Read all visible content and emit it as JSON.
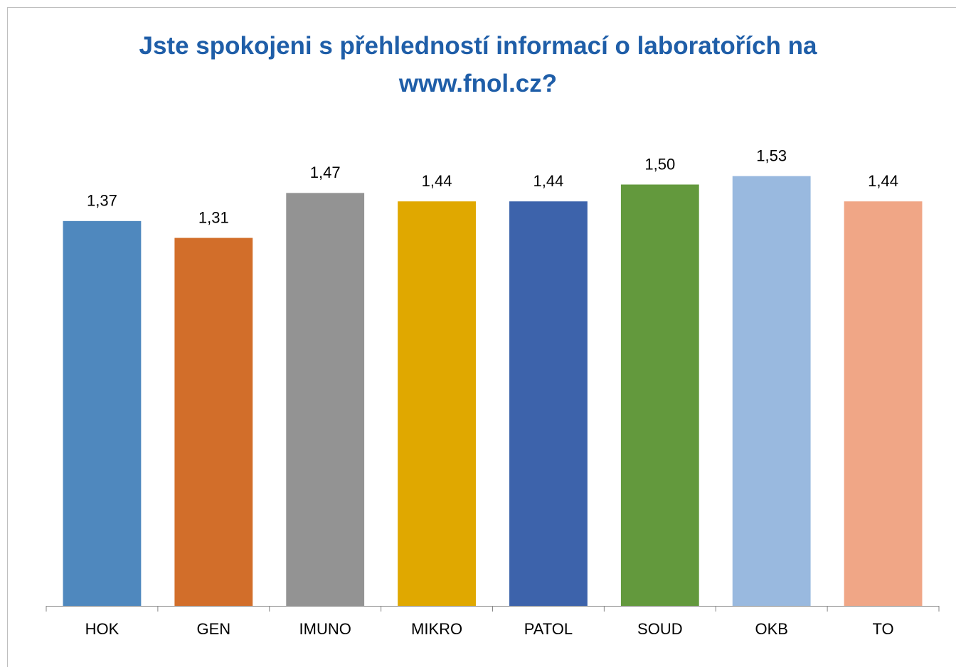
{
  "chart_data": {
    "type": "bar",
    "title": "Jste spokojeni s přehledností informací o laboratořích na www.fnol.cz?",
    "categories": [
      "HOK",
      "GEN",
      "IMUNO",
      "MIKRO",
      "PATOL",
      "SOUD",
      "OKB",
      "TO"
    ],
    "values": [
      1.37,
      1.31,
      1.47,
      1.44,
      1.44,
      1.5,
      1.53,
      1.44
    ],
    "value_labels": [
      "1,37",
      "1,31",
      "1,47",
      "1,44",
      "1,44",
      "1,50",
      "1,53",
      "1,44"
    ],
    "colors": [
      "#4f88be",
      "#d26e2a",
      "#939393",
      "#e0a800",
      "#3d63ab",
      "#63993d",
      "#99b9df",
      "#f0a686"
    ],
    "ylim": [
      0,
      1.8
    ]
  }
}
